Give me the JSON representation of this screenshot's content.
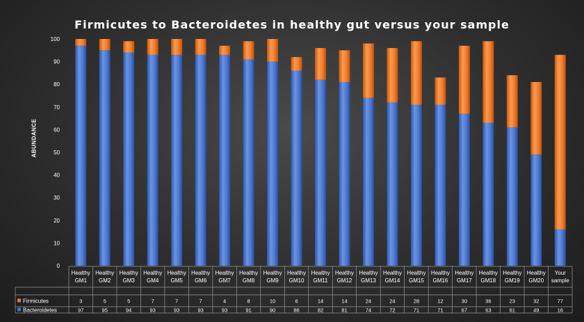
{
  "chart_data": {
    "type": "bar",
    "stacked": true,
    "title": "Firmicutes to Bacteroidetes in healthy gut versus your sample",
    "ylabel": "ABUNDANCE",
    "xlabel": "",
    "ylim": [
      0,
      100
    ],
    "yticks": [
      0,
      10,
      20,
      30,
      40,
      50,
      60,
      70,
      80,
      90,
      100
    ],
    "grid": false,
    "legend_placement": "data-table-left",
    "categories": [
      [
        "Healthy",
        "GM1"
      ],
      [
        "Healthy",
        "GM2"
      ],
      [
        "Healthy",
        "GM3"
      ],
      [
        "Healthy",
        "GM4"
      ],
      [
        "Healthy",
        "GM5"
      ],
      [
        "Healthy",
        "GM6"
      ],
      [
        "Healthy",
        "GM7"
      ],
      [
        "Healthy",
        "GM8"
      ],
      [
        "Healthy",
        "GM9"
      ],
      [
        "Healthy",
        "GM10"
      ],
      [
        "Healthy",
        "GM11"
      ],
      [
        "Healthy",
        "GM12"
      ],
      [
        "Healthy",
        "GM13"
      ],
      [
        "Healthy",
        "GM14"
      ],
      [
        "Healthy",
        "GM15"
      ],
      [
        "Healthy",
        "GM16"
      ],
      [
        "Healthy",
        "GM17"
      ],
      [
        "Healthy",
        "GM18"
      ],
      [
        "Healthy",
        "GM19"
      ],
      [
        "Healthy",
        "GM20"
      ],
      [
        "Your",
        "sample"
      ]
    ],
    "series": [
      {
        "name": "Firmicutes",
        "color": "#ed7d31",
        "values": [
          3,
          5,
          5,
          7,
          7,
          7,
          4,
          8,
          10,
          6,
          14,
          14,
          24,
          24,
          28,
          12,
          30,
          36,
          23,
          32,
          77
        ]
      },
      {
        "name": "Bacteroidetes",
        "color": "#4472c4",
        "values": [
          97,
          95,
          94,
          93,
          93,
          93,
          93,
          91,
          90,
          86,
          82,
          81,
          74,
          72,
          71,
          71,
          67,
          63,
          61,
          49,
          16
        ]
      }
    ]
  }
}
